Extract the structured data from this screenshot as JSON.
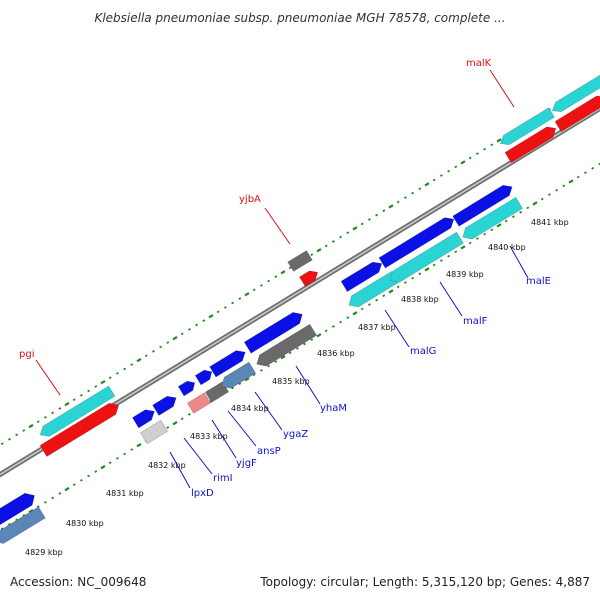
{
  "title": "Klebsiella pneumoniae subsp. pneumoniae MGH 78578, complete ...",
  "footer": {
    "accession": "Accession: NC_009648",
    "summary": "Topology: circular; Length: 5,315,120 bp; Genes: 4,887"
  },
  "colors": {
    "backbone": "#8c8c8c",
    "tick_outer": "#1d8a1d",
    "tick_inner": "#1d8a1d",
    "cds_forward": "#0a10e6",
    "cds_reverse": "#2bd4d4",
    "rna_red": "#ee1111",
    "pseudo_grey": "#6a6a6a",
    "steel_blue": "#5b86b8",
    "light_grey": "#cfcfcf",
    "pink": "#ee8888",
    "label_red": "#dd1111",
    "label_blue": "#1111cc"
  },
  "icons": {
    "cds-block": "arrow-shaped feature bar",
    "tick-mark": "short dash marker"
  },
  "kbp_labels": [
    "4829 kbp",
    "4830 kbp",
    "4831 kbp",
    "4832 kbp",
    "4833 kbp",
    "4834 kbp",
    "4835 kbp",
    "4836 kbp",
    "4837 kbp",
    "4838 kbp",
    "4839 kbp",
    "4840 kbp",
    "4841 kbp"
  ],
  "gene_labels": [
    {
      "name": "malK",
      "color": "red"
    },
    {
      "name": "yjbA",
      "color": "red"
    },
    {
      "name": "pgi",
      "color": "red"
    },
    {
      "name": "malE",
      "color": "blue"
    },
    {
      "name": "malF",
      "color": "blue"
    },
    {
      "name": "malG",
      "color": "blue"
    },
    {
      "name": "yhaM",
      "color": "blue"
    },
    {
      "name": "ygaZ",
      "color": "blue"
    },
    {
      "name": "ansP",
      "color": "blue"
    },
    {
      "name": "yjgF",
      "color": "blue"
    },
    {
      "name": "rimI",
      "color": "blue"
    },
    {
      "name": "lpxD",
      "color": "blue"
    }
  ]
}
